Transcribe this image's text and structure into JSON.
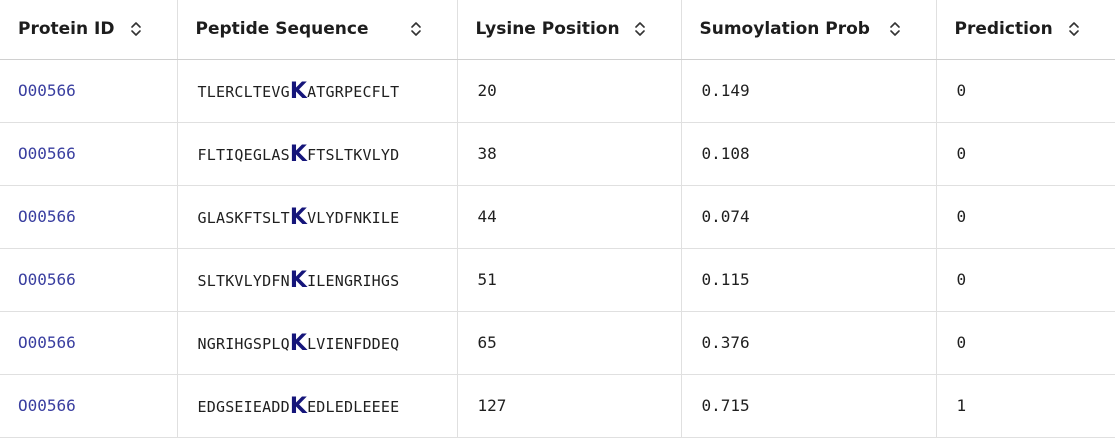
{
  "table": {
    "headers": [
      {
        "label": "Protein ID",
        "key": "protein-id"
      },
      {
        "label": "Peptide Sequence",
        "key": "peptide-sequence"
      },
      {
        "label": "Lysine Position",
        "key": "lysine-position"
      },
      {
        "label": "Sumoylation Prob",
        "key": "sumoylation-prob"
      },
      {
        "label": "Prediction",
        "key": "prediction"
      }
    ],
    "sort_icon": "sort-updown-icon",
    "rows": [
      {
        "protein_id": "O00566",
        "seq_before": "TLERCLTEVG",
        "seq_k": "K",
        "seq_after": "ATGRPECFLT",
        "lysine_position": "20",
        "prob": "0.149",
        "prediction": "0"
      },
      {
        "protein_id": "O00566",
        "seq_before": "FLTIQEGLAS",
        "seq_k": "K",
        "seq_after": "FTSLTKVLYD",
        "lysine_position": "38",
        "prob": "0.108",
        "prediction": "0"
      },
      {
        "protein_id": "O00566",
        "seq_before": "GLASKFTSLT",
        "seq_k": "K",
        "seq_after": "VLYDFNKILE",
        "lysine_position": "44",
        "prob": "0.074",
        "prediction": "0"
      },
      {
        "protein_id": "O00566",
        "seq_before": "SLTKVLYDFN",
        "seq_k": "K",
        "seq_after": "ILENGRIHGS",
        "lysine_position": "51",
        "prob": "0.115",
        "prediction": "0"
      },
      {
        "protein_id": "O00566",
        "seq_before": "NGRIHGSPLQ",
        "seq_k": "K",
        "seq_after": "LVIENFDDEQ",
        "lysine_position": "65",
        "prob": "0.376",
        "prediction": "0"
      },
      {
        "protein_id": "O00566",
        "seq_before": "EDGSEIEADD",
        "seq_k": "K",
        "seq_after": "EDLEDLEEEE",
        "lysine_position": "127",
        "prob": "0.715",
        "prediction": "1"
      }
    ]
  },
  "colors": {
    "link": "#3a3fa0",
    "highlight_k": "#15157a",
    "border": "#e0e0e0"
  }
}
